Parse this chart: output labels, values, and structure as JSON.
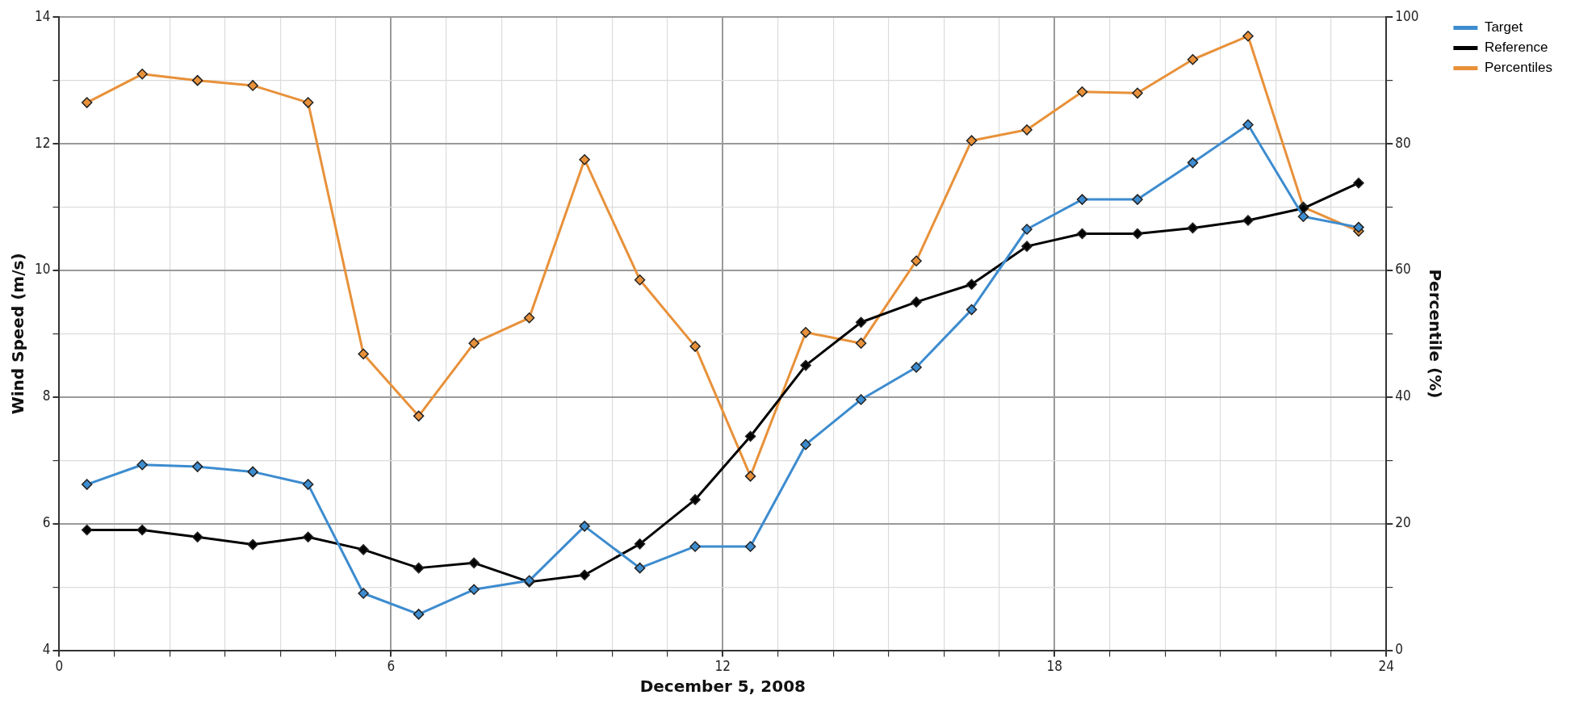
{
  "chart_data": {
    "type": "line",
    "xlabel": "December 5, 2008",
    "ylabel": "Wind Speed (m/s)",
    "y2label": "Percentile (%)",
    "x": [
      0.5,
      1.5,
      2.5,
      3.5,
      4.5,
      5.5,
      6.5,
      7.5,
      8.5,
      9.5,
      10.5,
      11.5,
      12.5,
      13.5,
      14.5,
      15.5,
      16.5,
      17.5,
      18.5,
      19.5,
      20.5,
      21.5,
      22.5,
      23.5
    ],
    "series": [
      {
        "name": "Target",
        "color": "#3d8ccf",
        "values": [
          6.62,
          6.93,
          6.9,
          6.82,
          6.62,
          4.9,
          4.57,
          4.96,
          5.1,
          5.96,
          5.3,
          5.64,
          5.64,
          7.25,
          7.96,
          8.47,
          9.38,
          10.65,
          11.12,
          11.12,
          11.7,
          12.3,
          10.85,
          10.68
        ]
      },
      {
        "name": "Reference",
        "color": "#000000",
        "values": [
          5.9,
          5.9,
          5.79,
          5.67,
          5.79,
          5.59,
          5.3,
          5.38,
          5.08,
          5.19,
          5.68,
          6.38,
          7.38,
          8.5,
          9.18,
          9.5,
          9.78,
          10.38,
          10.58,
          10.58,
          10.67,
          10.79,
          10.98,
          11.38
        ]
      },
      {
        "name": "Percentiles",
        "color": "#e8913a",
        "axis": "y2",
        "values": [
          86.5,
          91,
          90,
          89.2,
          86.5,
          46.8,
          37,
          48.5,
          52.5,
          77.5,
          58.5,
          48,
          27.5,
          50.2,
          48.5,
          61.5,
          80.5,
          82.2,
          88.2,
          88,
          93.3,
          97,
          70,
          66.2
        ]
      }
    ],
    "xlim": [
      0,
      24
    ],
    "xticks": [
      0,
      {
        "value": 1,
        "label": null
      },
      {
        "value": 2,
        "label": null
      },
      {
        "value": 3,
        "label": null
      },
      {
        "value": 4,
        "label": null
      },
      {
        "value": 5,
        "label": null
      },
      6,
      {
        "value": 7,
        "label": null
      },
      {
        "value": 8,
        "label": null
      },
      {
        "value": 9,
        "label": null
      },
      {
        "value": 10,
        "label": null
      },
      {
        "value": 11,
        "label": null
      },
      12,
      {
        "value": 13,
        "label": null
      },
      {
        "value": 14,
        "label": null
      },
      {
        "value": 15,
        "label": null
      },
      {
        "value": 16,
        "label": null
      },
      {
        "value": 17,
        "label": null
      },
      18,
      {
        "value": 19,
        "label": null
      },
      {
        "value": 20,
        "label": null
      },
      {
        "value": 21,
        "label": null
      },
      {
        "value": 22,
        "label": null
      },
      {
        "value": 23,
        "label": null
      },
      24
    ],
    "ylim": [
      4,
      14
    ],
    "yticks": [
      4,
      {
        "value": 5,
        "label": null
      },
      6,
      {
        "value": 7,
        "label": null
      },
      8,
      {
        "value": 9,
        "label": null
      },
      10,
      {
        "value": 11,
        "label": null
      },
      12,
      {
        "value": 13,
        "label": null
      },
      14
    ],
    "y2lim": [
      0,
      100
    ],
    "y2ticks": [
      0,
      {
        "value": 10,
        "label": null
      },
      20,
      {
        "value": 30,
        "label": null
      },
      40,
      {
        "value": 50,
        "label": null
      },
      60,
      {
        "value": 70,
        "label": null
      },
      80,
      {
        "value": 90,
        "label": null
      },
      100
    ],
    "grid": true,
    "legend": "top right",
    "marker": "diamond",
    "line_style": "solid"
  }
}
